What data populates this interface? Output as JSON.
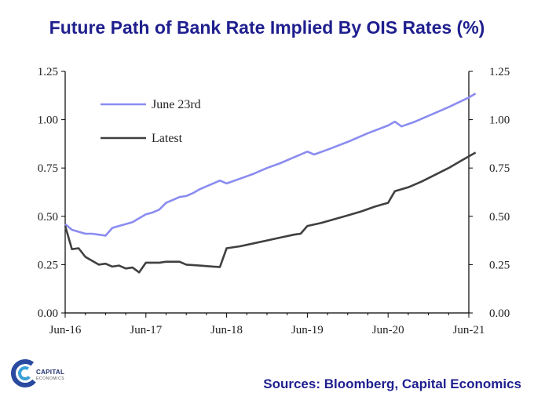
{
  "chart_data": {
    "type": "line",
    "title": "Future Path of Bank Rate Implied By OIS Rates (%)",
    "xlabel": "",
    "ylabel": "",
    "x_ticks": [
      "Jun-16",
      "Jun-17",
      "Jun-18",
      "Jun-19",
      "Jun-20",
      "Jun-21"
    ],
    "y_ticks": [
      "0.00",
      "0.25",
      "0.50",
      "0.75",
      "1.00",
      "1.25"
    ],
    "ylim": [
      0,
      1.25
    ],
    "x_range_months": [
      0,
      60
    ],
    "legend_position": "top-left",
    "series": [
      {
        "name": "June 23rd",
        "color": "#8a8cf0",
        "points": [
          [
            0,
            0.46
          ],
          [
            1,
            0.43
          ],
          [
            2,
            0.42
          ],
          [
            3,
            0.41
          ],
          [
            4,
            0.41
          ],
          [
            5,
            0.405
          ],
          [
            6,
            0.4
          ],
          [
            7,
            0.44
          ],
          [
            8,
            0.45
          ],
          [
            9,
            0.46
          ],
          [
            10,
            0.47
          ],
          [
            11,
            0.49
          ],
          [
            12,
            0.51
          ],
          [
            13,
            0.52
          ],
          [
            14,
            0.535
          ],
          [
            15,
            0.57
          ],
          [
            16,
            0.585
          ],
          [
            17,
            0.6
          ],
          [
            18,
            0.605
          ],
          [
            19,
            0.62
          ],
          [
            20,
            0.64
          ],
          [
            21,
            0.655
          ],
          [
            22,
            0.67
          ],
          [
            23,
            0.685
          ],
          [
            24,
            0.67
          ],
          [
            26,
            0.695
          ],
          [
            28,
            0.72
          ],
          [
            30,
            0.75
          ],
          [
            32,
            0.775
          ],
          [
            34,
            0.805
          ],
          [
            36,
            0.835
          ],
          [
            37,
            0.82
          ],
          [
            39,
            0.845
          ],
          [
            42,
            0.885
          ],
          [
            45,
            0.93
          ],
          [
            48,
            0.97
          ],
          [
            49,
            0.99
          ],
          [
            50,
            0.965
          ],
          [
            52,
            0.99
          ],
          [
            54,
            1.02
          ],
          [
            57,
            1.065
          ],
          [
            60,
            1.115
          ],
          [
            61,
            1.135
          ]
        ]
      },
      {
        "name": "Latest",
        "color": "#404040",
        "points": [
          [
            0,
            0.45
          ],
          [
            1,
            0.33
          ],
          [
            2,
            0.335
          ],
          [
            3,
            0.29
          ],
          [
            4,
            0.27
          ],
          [
            5,
            0.25
          ],
          [
            6,
            0.255
          ],
          [
            7,
            0.24
          ],
          [
            8,
            0.245
          ],
          [
            9,
            0.23
          ],
          [
            10,
            0.235
          ],
          [
            11,
            0.21
          ],
          [
            12,
            0.26
          ],
          [
            14,
            0.26
          ],
          [
            15,
            0.265
          ],
          [
            17,
            0.265
          ],
          [
            18,
            0.25
          ],
          [
            20,
            0.245
          ],
          [
            22,
            0.24
          ],
          [
            23,
            0.238
          ],
          [
            24,
            0.335
          ],
          [
            26,
            0.345
          ],
          [
            28,
            0.36
          ],
          [
            30,
            0.375
          ],
          [
            32,
            0.39
          ],
          [
            34,
            0.405
          ],
          [
            35,
            0.41
          ],
          [
            36,
            0.45
          ],
          [
            38,
            0.465
          ],
          [
            40,
            0.485
          ],
          [
            42,
            0.505
          ],
          [
            44,
            0.525
          ],
          [
            46,
            0.55
          ],
          [
            47,
            0.56
          ],
          [
            48,
            0.57
          ],
          [
            49,
            0.63
          ],
          [
            51,
            0.65
          ],
          [
            53,
            0.68
          ],
          [
            55,
            0.715
          ],
          [
            57,
            0.75
          ],
          [
            59,
            0.79
          ],
          [
            61,
            0.83
          ]
        ]
      }
    ]
  },
  "source_text": "Sources: Bloomberg, Capital Economics",
  "logo": {
    "name": "CAPITAL",
    "sub": "ECONOMICS"
  }
}
